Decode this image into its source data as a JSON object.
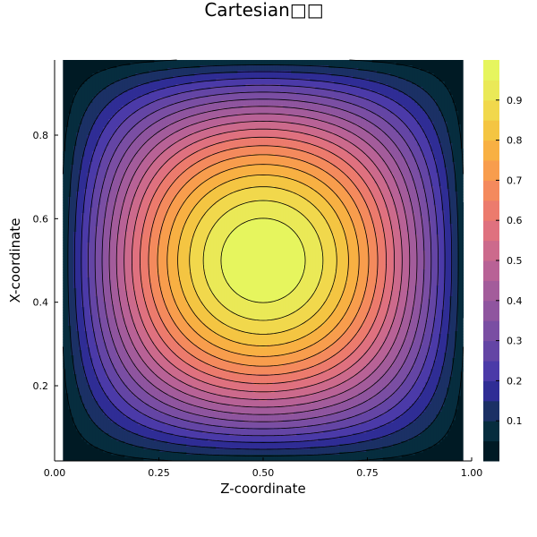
{
  "chart_data": {
    "type": "heatmap",
    "subtype": "filled-contour",
    "title": "Cartesian□□",
    "xlabel": "Z-coordinate",
    "ylabel": "X-coordinate",
    "xlim": [
      0.0,
      1.0
    ],
    "ylim": [
      0.02,
      0.98
    ],
    "x_plot_range": [
      0.02,
      0.98
    ],
    "x_ticks": [
      0.0,
      0.25,
      0.5,
      0.75,
      1.0
    ],
    "x_tick_labels": [
      "0.00",
      "0.25",
      "0.50",
      "0.75",
      "1.00"
    ],
    "y_ticks": [
      0.2,
      0.4,
      0.6,
      0.8
    ],
    "y_tick_labels": [
      "0.2",
      "0.4",
      "0.6",
      "0.8"
    ],
    "grid": false,
    "field": {
      "function": "sin(pi*x)*sin(pi*z)",
      "peak_value": 1.0,
      "peak_location": [
        0.5,
        0.5
      ]
    },
    "contour_levels": [
      0.05,
      0.1,
      0.15,
      0.2,
      0.25,
      0.3,
      0.35,
      0.4,
      0.45,
      0.5,
      0.55,
      0.6,
      0.65,
      0.7,
      0.75,
      0.8,
      0.85,
      0.9,
      0.95
    ],
    "contour_line_color": "#000000",
    "colorbar": {
      "range": [
        0.0,
        1.0
      ],
      "ticks": [
        0.1,
        0.2,
        0.3,
        0.4,
        0.5,
        0.6,
        0.7,
        0.8,
        0.9
      ],
      "tick_labels": [
        "0.1",
        "0.2",
        "0.3",
        "0.4",
        "0.5",
        "0.6",
        "0.7",
        "0.8",
        "0.9"
      ],
      "placement": "right"
    },
    "colormap": [
      "#001a24",
      "#062d3e",
      "#1b3065",
      "#2f2d95",
      "#4b3aa8",
      "#6445a5",
      "#7a4ea3",
      "#8f559f",
      "#a35c9b",
      "#b86296",
      "#cc6a8c",
      "#df717f",
      "#ec7b6d",
      "#f48a5d",
      "#f89d4d",
      "#f8b043",
      "#f4c542",
      "#f1d84c",
      "#eae957",
      "#e6f55e"
    ]
  }
}
